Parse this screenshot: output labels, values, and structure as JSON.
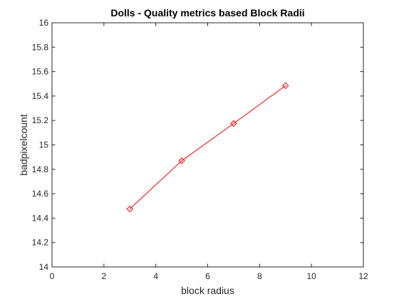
{
  "chart_data": {
    "type": "line",
    "title": "Dolls - Quality metrics based Block Radii",
    "xlabel": "block radius",
    "ylabel": "badpixelcount",
    "xlim": [
      0,
      12
    ],
    "ylim": [
      14,
      16
    ],
    "x_ticks": [
      "0",
      "2",
      "4",
      "6",
      "8",
      "10",
      "12"
    ],
    "y_ticks": [
      "14",
      "14.2",
      "14.4",
      "14.6",
      "14.8",
      "15",
      "15.2",
      "15.4",
      "15.6",
      "15.8",
      "16"
    ],
    "grid": false,
    "legend": "none",
    "series": [
      {
        "color": "#ff0000",
        "marker": "diamond",
        "x": [
          3,
          5,
          7,
          9
        ],
        "y": [
          14.475,
          14.87,
          15.175,
          15.485
        ]
      }
    ]
  }
}
